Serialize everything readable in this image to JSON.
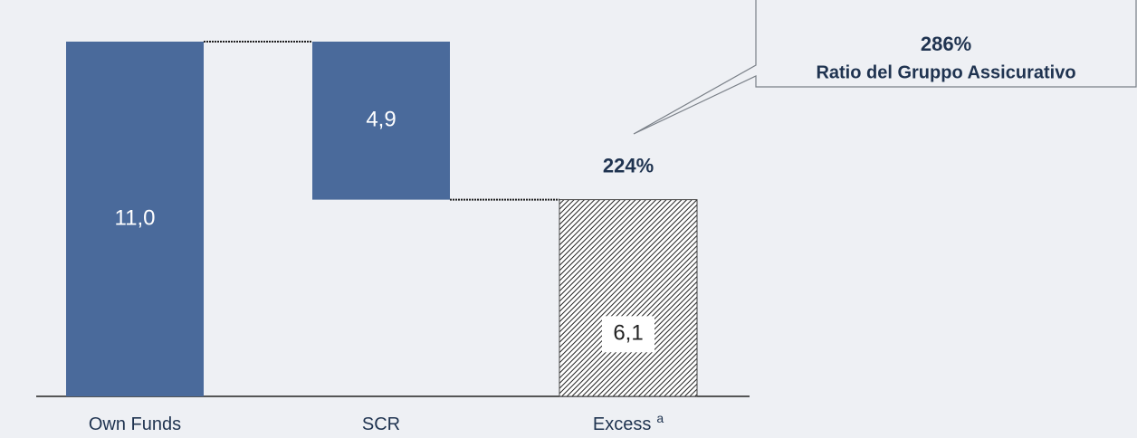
{
  "chart_data": {
    "type": "waterfall",
    "categories": [
      "Own Funds",
      "SCR",
      "Excess"
    ],
    "category_superscripts": [
      null,
      null,
      "a"
    ],
    "values": [
      11.0,
      4.9,
      6.1
    ],
    "value_labels": [
      "11,0",
      "4,9",
      "6,1"
    ],
    "measures": [
      "total",
      "decrease",
      "total"
    ],
    "color": "#4a6a9b",
    "hatched": [
      false,
      false,
      true
    ],
    "annotations": [
      {
        "text": "224%",
        "category": 2
      },
      {
        "title": "286%",
        "text": "Ratio del Gruppo Assicurativo"
      }
    ]
  }
}
